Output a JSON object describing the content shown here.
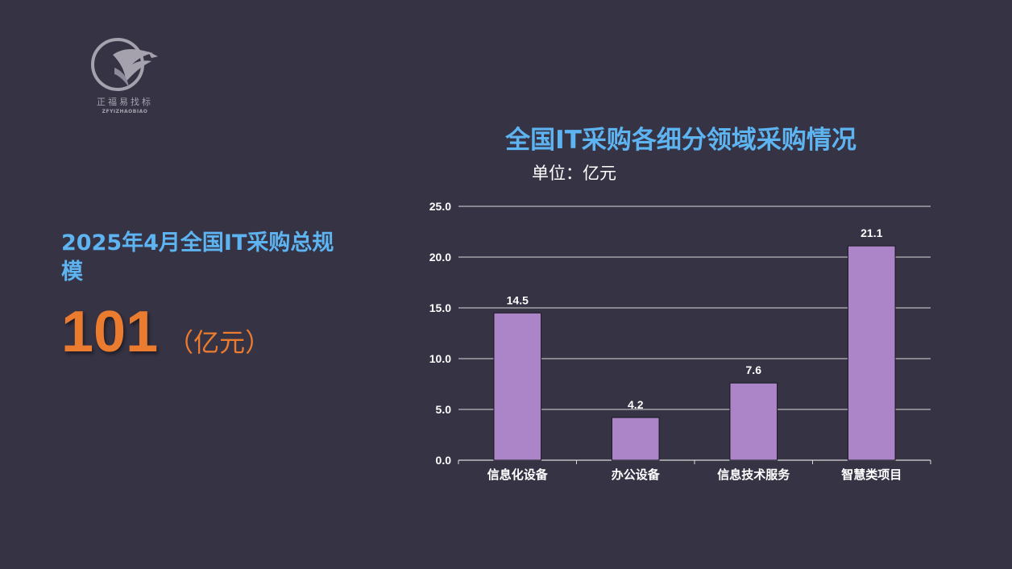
{
  "logo": {
    "name_cn": "正福易找标",
    "name_en": "ZFYIZHAOBIAO",
    "icon": "eagle-circle-logo"
  },
  "summary": {
    "title": "2025年4月全国IT采购总规模",
    "value": "101",
    "unit": "（亿元）"
  },
  "chart_data": {
    "type": "bar",
    "title": "全国IT采购各细分领域采购情况",
    "subtitle": "单位：亿元",
    "categories": [
      "信息化设备",
      "办公设备",
      "信息技术服务",
      "智慧类项目"
    ],
    "values": [
      14.5,
      4.2,
      7.6,
      21.1
    ],
    "value_labels": [
      "14.5",
      "4.2",
      "7.6",
      "21.1"
    ],
    "y_ticks": [
      "0.0",
      "5.0",
      "10.0",
      "15.0",
      "20.0",
      "25.0"
    ],
    "ylim": [
      0,
      25
    ],
    "grid": true,
    "xlabel": "",
    "ylabel": ""
  },
  "colors": {
    "background": "#363345",
    "accent_blue": "#5db4f1",
    "accent_orange": "#ea7b2f",
    "bar_fill": "#ab85c8"
  }
}
